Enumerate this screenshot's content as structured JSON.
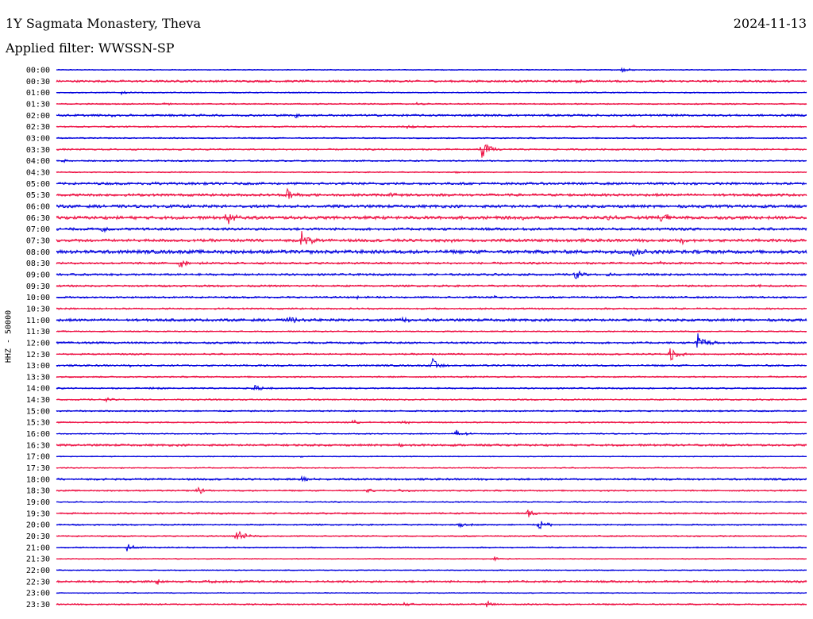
{
  "header": {
    "station": "1Y Sagmata Monastery, Theva",
    "date": "2024-11-13",
    "filter": "Applied filter: WWSSN-SP"
  },
  "colors": {
    "even_trace": "#0000dd",
    "odd_trace": "#ee1144",
    "background": "#ffffff",
    "text": "#000000"
  },
  "chart_data": {
    "type": "line",
    "title": "1Y Sagmata Monastery, Theva",
    "ylabel": "HHZ - 50000",
    "grid": false,
    "x_unit": "minutes",
    "x_range": [
      0,
      30
    ],
    "rows": [
      {
        "label": "00:00",
        "color": "blue",
        "noise": 0.6,
        "events": [
          {
            "x": 22.6,
            "amp": 4.5
          }
        ]
      },
      {
        "label": "00:30",
        "color": "red",
        "noise": 1.3,
        "events": [
          {
            "x": 20.7,
            "amp": 2.0
          }
        ]
      },
      {
        "label": "01:00",
        "color": "blue",
        "noise": 0.7,
        "events": [
          {
            "x": 2.6,
            "amp": 2.2
          }
        ]
      },
      {
        "label": "01:30",
        "color": "red",
        "noise": 0.8,
        "events": [
          {
            "x": 4.3,
            "amp": 1.5
          },
          {
            "x": 14.4,
            "amp": 1.5
          }
        ]
      },
      {
        "label": "02:00",
        "color": "blue",
        "noise": 1.3,
        "events": [
          {
            "x": 9.5,
            "amp": 3.5
          },
          {
            "x": 2.2,
            "amp": 1.8
          }
        ]
      },
      {
        "label": "02:30",
        "color": "red",
        "noise": 0.9,
        "events": [
          {
            "x": 14.0,
            "amp": 2.5
          },
          {
            "x": 23.0,
            "amp": 1.8
          }
        ]
      },
      {
        "label": "03:00",
        "color": "blue",
        "noise": 0.8,
        "events": []
      },
      {
        "label": "03:30",
        "color": "red",
        "noise": 1.0,
        "events": [
          {
            "x": 17.0,
            "amp": 12.0
          },
          {
            "x": 6.0,
            "amp": 1.5
          }
        ]
      },
      {
        "label": "04:00",
        "color": "blue",
        "noise": 0.9,
        "events": [
          {
            "x": 0.2,
            "amp": 2.0
          }
        ]
      },
      {
        "label": "04:30",
        "color": "red",
        "noise": 0.7,
        "events": [
          {
            "x": 16.0,
            "amp": 1.5
          },
          {
            "x": 25.0,
            "amp": 1.5
          }
        ]
      },
      {
        "label": "05:00",
        "color": "blue",
        "noise": 1.5,
        "events": [
          {
            "x": 3.8,
            "amp": 2.0
          }
        ]
      },
      {
        "label": "05:30",
        "color": "red",
        "noise": 1.6,
        "events": [
          {
            "x": 9.2,
            "amp": 10.0
          },
          {
            "x": 13.3,
            "amp": 3.0
          }
        ]
      },
      {
        "label": "06:00",
        "color": "blue",
        "noise": 1.8,
        "events": []
      },
      {
        "label": "06:30",
        "color": "red",
        "noise": 2.0,
        "events": [
          {
            "x": 6.8,
            "amp": 9.0
          },
          {
            "x": 24.1,
            "amp": 12.0
          },
          {
            "x": 18.5,
            "amp": 3.5
          },
          {
            "x": 22.0,
            "amp": 3.0
          }
        ]
      },
      {
        "label": "07:00",
        "color": "blue",
        "noise": 1.6,
        "events": [
          {
            "x": 1.8,
            "amp": 3.5
          }
        ]
      },
      {
        "label": "07:30",
        "color": "red",
        "noise": 1.8,
        "events": [
          {
            "x": 9.8,
            "amp": 13.0
          },
          {
            "x": 25.0,
            "amp": 5.0
          },
          {
            "x": 15.5,
            "amp": 2.5
          }
        ]
      },
      {
        "label": "08:00",
        "color": "blue",
        "noise": 2.2,
        "events": [
          {
            "x": 23.0,
            "amp": 8.0
          }
        ]
      },
      {
        "label": "08:30",
        "color": "red",
        "noise": 1.3,
        "events": [
          {
            "x": 4.9,
            "amp": 7.0
          },
          {
            "x": 24.0,
            "amp": 2.5
          }
        ]
      },
      {
        "label": "09:00",
        "color": "blue",
        "noise": 1.3,
        "events": [
          {
            "x": 20.7,
            "amp": 6.5
          },
          {
            "x": 22.0,
            "amp": 3.5
          },
          {
            "x": 17.5,
            "amp": 2.5
          }
        ]
      },
      {
        "label": "09:30",
        "color": "red",
        "noise": 1.2,
        "events": [
          {
            "x": 27.9,
            "amp": 2.0
          }
        ]
      },
      {
        "label": "10:00",
        "color": "blue",
        "noise": 1.1,
        "events": [
          {
            "x": 12.0,
            "amp": 1.8
          },
          {
            "x": 17.5,
            "amp": 1.5
          }
        ]
      },
      {
        "label": "10:30",
        "color": "red",
        "noise": 1.0,
        "events": []
      },
      {
        "label": "11:00",
        "color": "blue",
        "noise": 1.6,
        "events": [
          {
            "x": 9.3,
            "amp": 5.0
          },
          {
            "x": 13.8,
            "amp": 5.0
          }
        ]
      },
      {
        "label": "11:30",
        "color": "red",
        "noise": 0.8,
        "events": []
      },
      {
        "label": "12:00",
        "color": "blue",
        "noise": 1.2,
        "events": [
          {
            "x": 25.6,
            "amp": 14.0
          },
          {
            "x": 12.1,
            "amp": 2.0
          }
        ]
      },
      {
        "label": "12:30",
        "color": "red",
        "noise": 1.0,
        "events": [
          {
            "x": 24.5,
            "amp": 12.0
          }
        ]
      },
      {
        "label": "13:00",
        "color": "blue",
        "noise": 1.1,
        "events": [
          {
            "x": 15.0,
            "amp": 10.0
          },
          {
            "x": 2.8,
            "amp": 1.5
          }
        ]
      },
      {
        "label": "13:30",
        "color": "red",
        "noise": 0.9,
        "events": []
      },
      {
        "label": "14:00",
        "color": "blue",
        "noise": 0.9,
        "events": [
          {
            "x": 3.7,
            "amp": 2.5
          },
          {
            "x": 7.8,
            "amp": 6.0
          }
        ]
      },
      {
        "label": "14:30",
        "color": "red",
        "noise": 0.9,
        "events": [
          {
            "x": 2.0,
            "amp": 2.0
          }
        ]
      },
      {
        "label": "15:00",
        "color": "blue",
        "noise": 0.9,
        "events": []
      },
      {
        "label": "15:30",
        "color": "red",
        "noise": 0.9,
        "events": [
          {
            "x": 11.8,
            "amp": 3.0
          },
          {
            "x": 13.8,
            "amp": 2.5
          }
        ]
      },
      {
        "label": "16:00",
        "color": "blue",
        "noise": 0.7,
        "events": [
          {
            "x": 16.0,
            "amp": 6.5
          }
        ]
      },
      {
        "label": "16:30",
        "color": "red",
        "noise": 1.3,
        "events": [
          {
            "x": 13.5,
            "amp": 2.0
          }
        ]
      },
      {
        "label": "17:00",
        "color": "blue",
        "noise": 0.6,
        "events": [
          {
            "x": 9.7,
            "amp": 1.5
          }
        ]
      },
      {
        "label": "17:30",
        "color": "red",
        "noise": 0.7,
        "events": [
          {
            "x": 2.5,
            "amp": 1.5
          }
        ]
      },
      {
        "label": "18:00",
        "color": "blue",
        "noise": 1.2,
        "events": [
          {
            "x": 9.8,
            "amp": 4.0
          }
        ]
      },
      {
        "label": "18:30",
        "color": "red",
        "noise": 0.9,
        "events": [
          {
            "x": 5.6,
            "amp": 6.5
          },
          {
            "x": 12.4,
            "amp": 3.0
          },
          {
            "x": 13.7,
            "amp": 2.0
          }
        ]
      },
      {
        "label": "19:00",
        "color": "blue",
        "noise": 0.7,
        "events": [
          {
            "x": 9.0,
            "amp": 2.0
          }
        ]
      },
      {
        "label": "19:30",
        "color": "red",
        "noise": 1.0,
        "events": [
          {
            "x": 18.8,
            "amp": 6.0
          }
        ]
      },
      {
        "label": "20:00",
        "color": "blue",
        "noise": 0.9,
        "events": [
          {
            "x": 19.3,
            "amp": 6.0
          },
          {
            "x": 16.1,
            "amp": 4.0
          }
        ]
      },
      {
        "label": "20:30",
        "color": "red",
        "noise": 0.8,
        "events": [
          {
            "x": 7.2,
            "amp": 10.0
          }
        ]
      },
      {
        "label": "21:00",
        "color": "blue",
        "noise": 0.8,
        "events": [
          {
            "x": 2.8,
            "amp": 5.0
          }
        ]
      },
      {
        "label": "21:30",
        "color": "red",
        "noise": 0.6,
        "events": [
          {
            "x": 17.5,
            "amp": 3.0
          }
        ]
      },
      {
        "label": "22:00",
        "color": "blue",
        "noise": 0.6,
        "events": []
      },
      {
        "label": "22:30",
        "color": "red",
        "noise": 1.3,
        "events": [
          {
            "x": 4.0,
            "amp": 4.0
          },
          {
            "x": 6.0,
            "amp": 2.5
          }
        ]
      },
      {
        "label": "23:00",
        "color": "blue",
        "noise": 0.6,
        "events": []
      },
      {
        "label": "23:30",
        "color": "red",
        "noise": 0.9,
        "events": [
          {
            "x": 17.2,
            "amp": 4.0
          },
          {
            "x": 13.9,
            "amp": 2.0
          }
        ]
      }
    ]
  }
}
